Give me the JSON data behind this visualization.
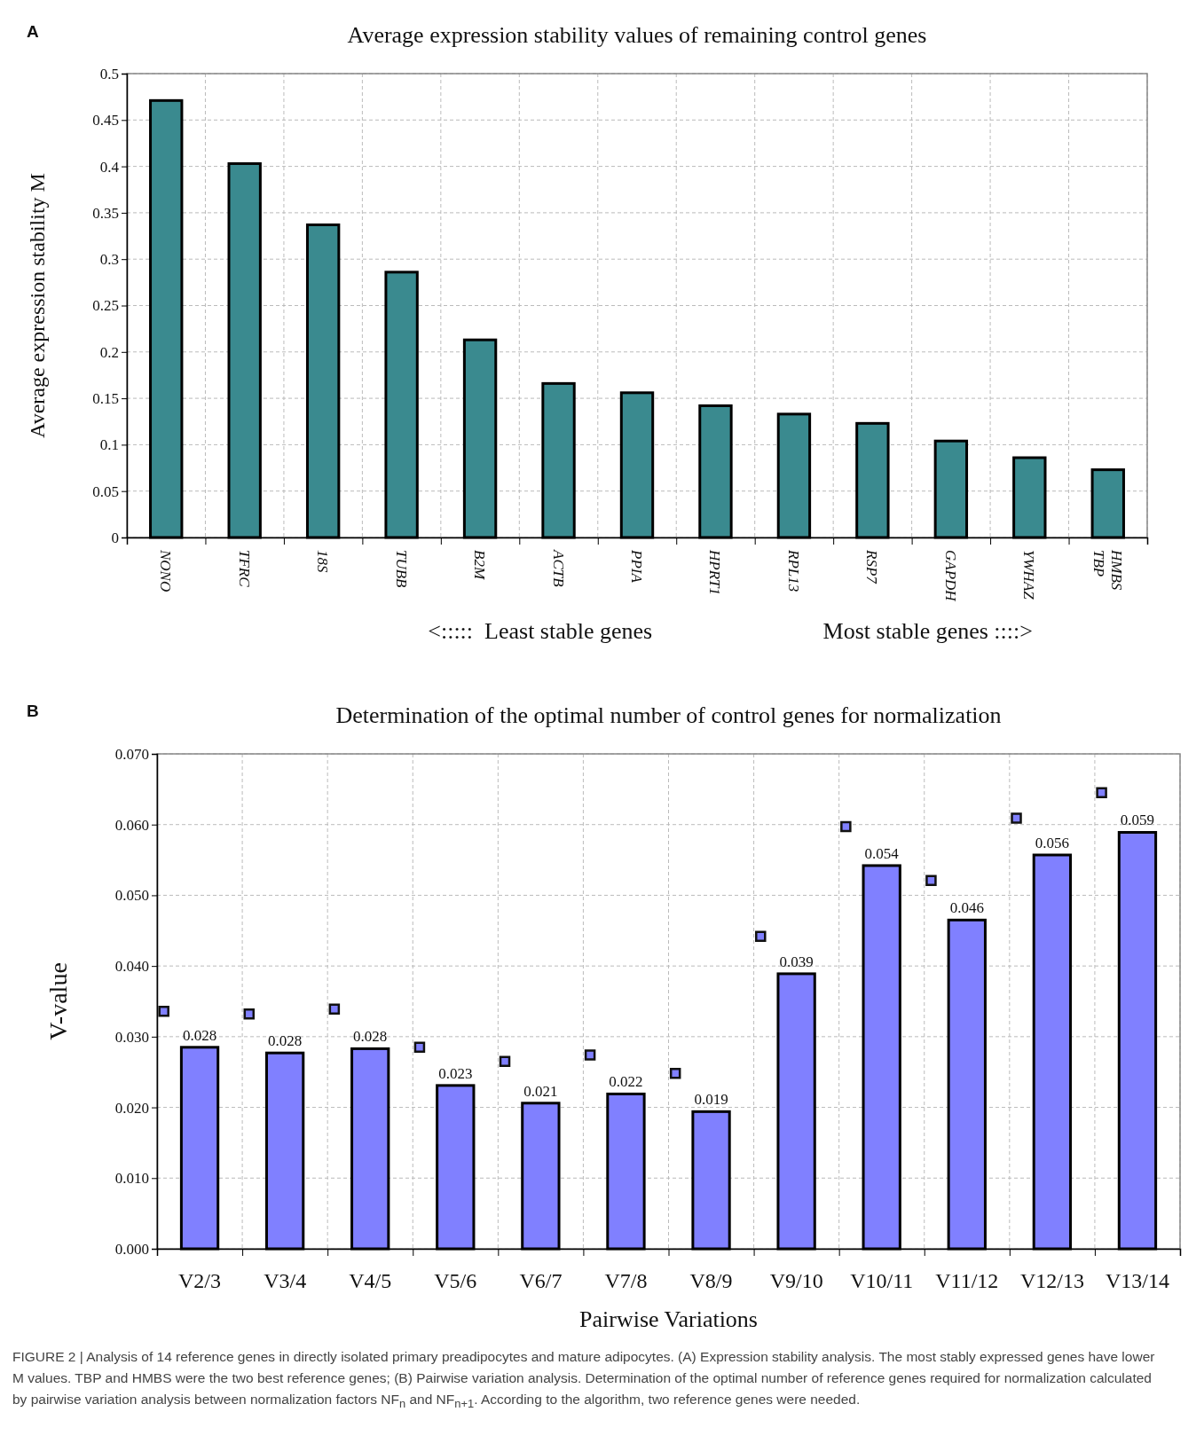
{
  "chart_data": [
    {
      "type": "bar",
      "title": "Average expression stability values of remaining control genes",
      "ylabel": "Average expression stability M",
      "categories": [
        "NONO",
        "TFRC",
        "18S",
        "TUBB",
        "B2M",
        "ACTB",
        "PPIA",
        "HPRT1",
        "RPL13",
        "RSP7",
        "GAPDH",
        "YWHAZ",
        "HMBS\nTBP"
      ],
      "values": [
        0.471,
        0.403,
        0.337,
        0.286,
        0.213,
        0.166,
        0.156,
        0.142,
        0.133,
        0.123,
        0.104,
        0.086,
        0.073
      ],
      "color": "#3a8a8f",
      "ylim": [
        0,
        0.5
      ],
      "yticks": [
        0,
        0.05,
        0.1,
        0.15,
        0.2,
        0.25,
        0.3,
        0.35,
        0.4,
        0.45,
        0.5
      ],
      "grid": true,
      "annotations": [
        "A",
        "<:::::  Least stable genes",
        "Most stable genes ::::>"
      ]
    },
    {
      "type": "bar",
      "title": "Determination of the optimal number of control genes for normalization",
      "xlabel": "Pairwise Variations",
      "ylabel": "V-value",
      "categories": [
        "V2/3",
        "V3/4",
        "V4/5",
        "V5/6",
        "V6/7",
        "V7/8",
        "V8/9",
        "V9/10",
        "V10/11",
        "V11/12",
        "V12/13",
        "V13/14"
      ],
      "series": [
        {
          "type": "bar",
          "color": "#8080ff",
          "values": [
            0.0285,
            0.0277,
            0.0283,
            0.0231,
            0.0206,
            0.0219,
            0.0194,
            0.0389,
            0.0542,
            0.0465,
            0.0557,
            0.0589
          ],
          "value_labels": [
            "0.028",
            "0.028",
            "0.028",
            "0.023",
            "0.021",
            "0.022",
            "0.019",
            "0.039",
            "0.054",
            "0.046",
            "0.056",
            "0.059"
          ]
        },
        {
          "type": "scatter",
          "color": "#8080ff",
          "marker": "square",
          "x": [
            "V2/3",
            "V3/4",
            "V4/5",
            "V5/6",
            "V6/7",
            "V7/8",
            "V8/9",
            "V9/10",
            "V10/11",
            "V11/12",
            "V12/13",
            "V13/14"
          ],
          "values": [
            0.0336,
            0.0332,
            0.0339,
            0.0285,
            0.0265,
            0.0274,
            0.0248,
            0.0442,
            0.0597,
            0.0521,
            0.0609,
            0.0645
          ]
        }
      ],
      "ylim": [
        0,
        0.07
      ],
      "yticks": [
        {
          "value": 0,
          "label": "0.000"
        },
        {
          "value": 0.01,
          "label": "0.010"
        },
        {
          "value": 0.02,
          "label": "0.020"
        },
        {
          "value": 0.03,
          "label": "0.030"
        },
        {
          "value": 0.04,
          "label": "0.040"
        },
        {
          "value": 0.05,
          "label": "0.050"
        },
        {
          "value": 0.06,
          "label": "0.060"
        },
        {
          "value": 0.07,
          "label": "0.070"
        }
      ],
      "grid": true,
      "annotations": [
        "B",
        "FIGURE 2 | Analysis of 14 reference genes in directly isolated primary preadipocytes and mature adipocytes. (A) Expression stability analysis. The most stably expressed genes have lower M values. TBP and HMBS were the two best reference genes; (B) Pairwise variation analysis. Determination of the optimal number of reference genes required for normalization calculated by pairwise variation analysis between normalization factors NF$_{n}$ and NF$_{n+1}$. According to the algorithm, two reference genes were needed."
      ]
    }
  ]
}
